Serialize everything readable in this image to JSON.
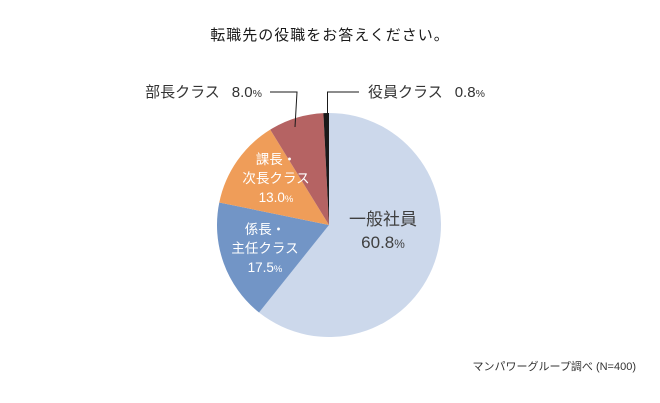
{
  "chart_data": {
    "type": "pie",
    "title": "転職先の役職をお答えください。",
    "source": "マンパワーグループ調べ (N=400)",
    "start_angle": "12-oclock",
    "direction": "clockwise",
    "legend_position": "none",
    "grid": false,
    "percent_sign": "%",
    "slices": [
      {
        "label": "一般社員",
        "label_lines": [
          "一般社員"
        ],
        "value": 60.8,
        "value_label": "60.8",
        "color": "#ccd8eb",
        "text_color": "#3f3f3f",
        "label_placement": "inside"
      },
      {
        "label": "係長・主任クラス",
        "label_lines": [
          "係長・",
          "主任クラス"
        ],
        "value": 17.5,
        "value_label": "17.5",
        "color": "#7295c6",
        "text_color": "#ffffff",
        "label_placement": "inside"
      },
      {
        "label": "課長・次長クラス",
        "label_lines": [
          "課長・",
          "次長クラス"
        ],
        "value": 13.0,
        "value_label": "13.0",
        "color": "#ef9d59",
        "text_color": "#ffffff",
        "label_placement": "inside"
      },
      {
        "label": "部長クラス",
        "label_lines": [
          "部長クラス"
        ],
        "value": 8.0,
        "value_label": "8.0",
        "color": "#b56363",
        "text_color": "#333333",
        "label_placement": "callout-left"
      },
      {
        "label": "役員クラス",
        "label_lines": [
          "役員クラス"
        ],
        "value": 0.8,
        "value_label": "0.8",
        "color": "#1a1a1a",
        "text_color": "#333333",
        "label_placement": "callout-right"
      }
    ]
  }
}
